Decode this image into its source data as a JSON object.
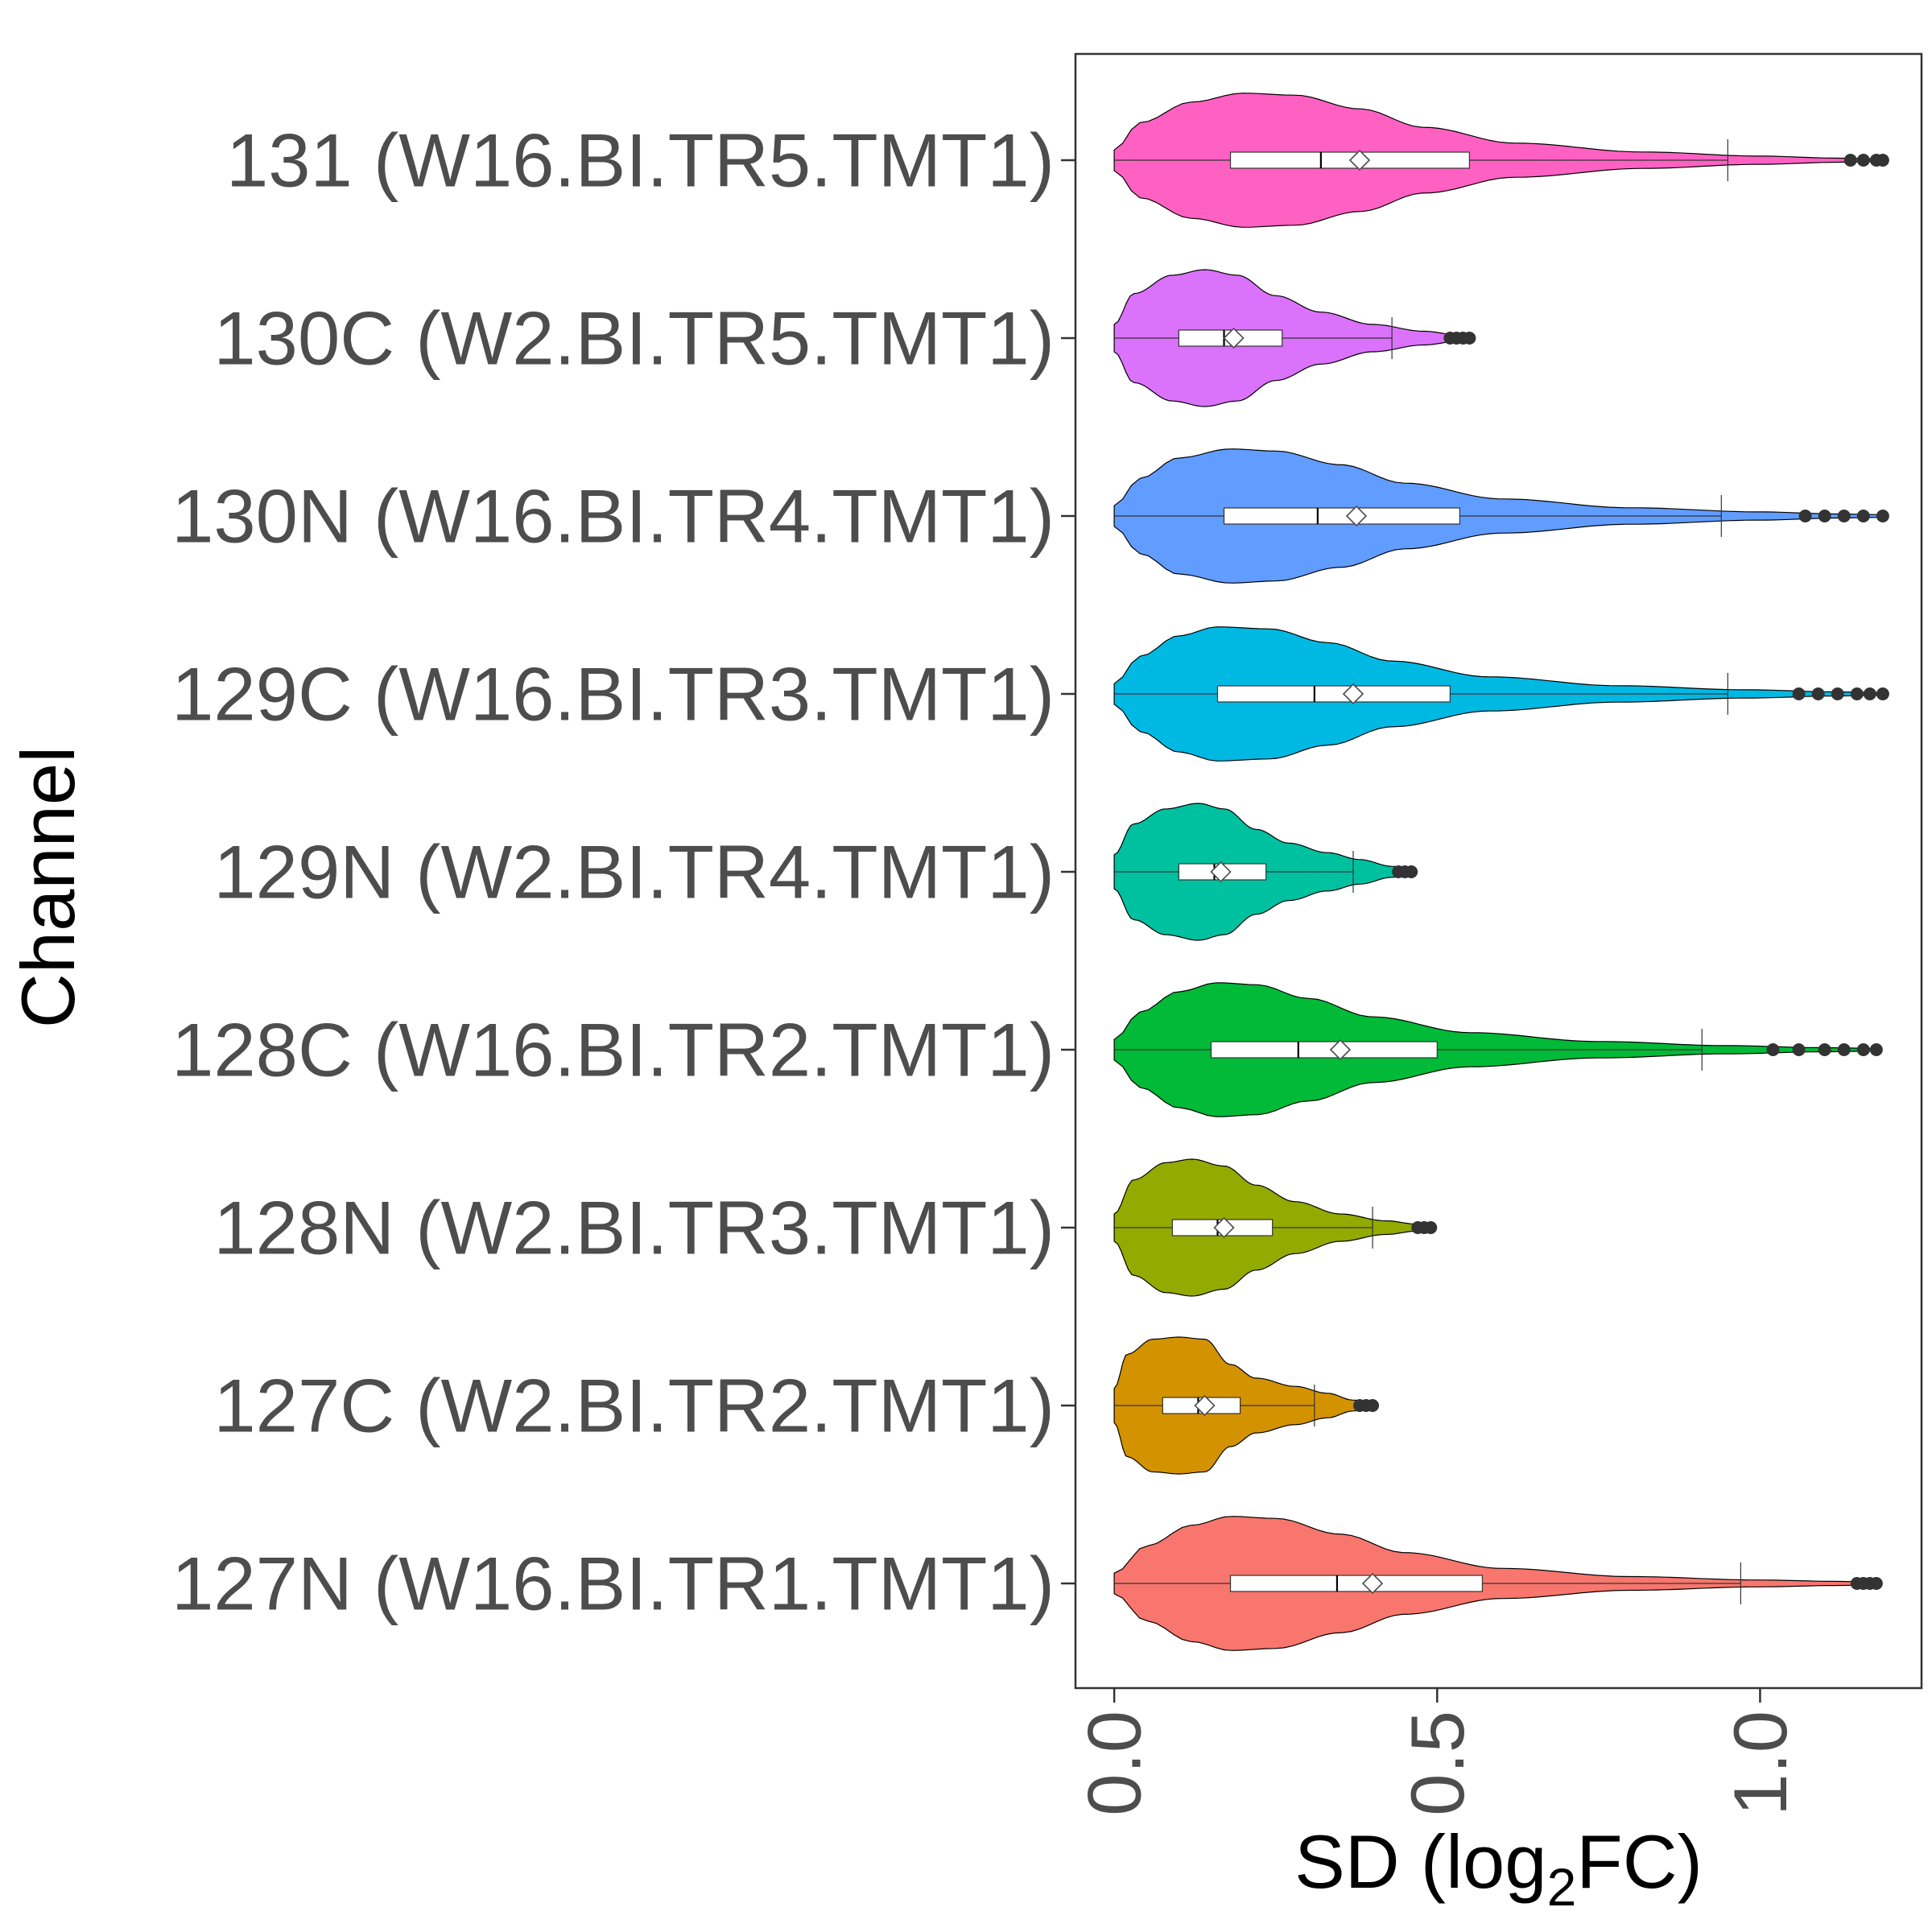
{
  "chart_data": {
    "type": "violin",
    "orientation": "horizontal",
    "title": "",
    "xlabel": "SD (log2FC)",
    "xlabel_parts": {
      "main": "SD (log",
      "sub": "2",
      "tail": "FC)"
    },
    "ylabel": "Channel",
    "xlim": [
      -0.06,
      1.25
    ],
    "xticks": [
      0.0,
      0.5,
      1.0
    ],
    "xtick_labels": [
      "0.0",
      "0.5",
      "1.0"
    ],
    "grid": false,
    "legend": "none",
    "categories": [
      "127N (W16.BI.TR1.TMT1)",
      "127C (W2.BI.TR2.TMT1)",
      "128N (W2.BI.TR3.TMT1)",
      "128C (W16.BI.TR2.TMT1)",
      "129N (W2.BI.TR4.TMT1)",
      "129C (W16.BI.TR3.TMT1)",
      "130N (W16.BI.TR4.TMT1)",
      "130C (W2.BI.TR5.TMT1)",
      "131 (W16.BI.TR5.TMT1)"
    ],
    "series": [
      {
        "name": "127N (W16.BI.TR1.TMT1)",
        "color": "#F8766D",
        "min": 0.0,
        "q1": 0.18,
        "median": 0.345,
        "mean": 0.4,
        "q3": 0.57,
        "upper_whisker": 0.97,
        "max": 1.18,
        "profile": [
          [
            0.0,
            0.15
          ],
          [
            0.05,
            0.55
          ],
          [
            0.12,
            0.85
          ],
          [
            0.18,
            0.98
          ],
          [
            0.25,
            0.95
          ],
          [
            0.35,
            0.72
          ],
          [
            0.45,
            0.45
          ],
          [
            0.6,
            0.22
          ],
          [
            0.8,
            0.1
          ],
          [
            1.0,
            0.05
          ],
          [
            1.12,
            0.03
          ],
          [
            1.18,
            0.02
          ]
        ],
        "outliers": [
          1.15,
          1.16,
          1.17,
          1.18
        ]
      },
      {
        "name": "127C (W2.BI.TR2.TMT1)",
        "color": "#D39200",
        "min": 0.0,
        "q1": 0.075,
        "median": 0.13,
        "mean": 0.14,
        "q3": 0.195,
        "upper_whisker": 0.31,
        "max": 0.4,
        "profile": [
          [
            0.0,
            0.25
          ],
          [
            0.02,
            0.75
          ],
          [
            0.06,
            0.97
          ],
          [
            0.1,
            1.0
          ],
          [
            0.14,
            0.97
          ],
          [
            0.18,
            0.6
          ],
          [
            0.22,
            0.4
          ],
          [
            0.28,
            0.28
          ],
          [
            0.33,
            0.18
          ],
          [
            0.37,
            0.08
          ],
          [
            0.4,
            0.03
          ]
        ],
        "outliers": [
          0.38,
          0.39,
          0.4
        ]
      },
      {
        "name": "128N (W2.BI.TR3.TMT1)",
        "color": "#93AA00",
        "min": 0.0,
        "q1": 0.09,
        "median": 0.16,
        "mean": 0.17,
        "q3": 0.245,
        "upper_whisker": 0.4,
        "max": 0.49,
        "profile": [
          [
            0.0,
            0.2
          ],
          [
            0.03,
            0.7
          ],
          [
            0.08,
            0.95
          ],
          [
            0.12,
            1.0
          ],
          [
            0.17,
            0.9
          ],
          [
            0.22,
            0.62
          ],
          [
            0.28,
            0.38
          ],
          [
            0.35,
            0.2
          ],
          [
            0.42,
            0.1
          ],
          [
            0.47,
            0.05
          ],
          [
            0.49,
            0.02
          ]
        ],
        "outliers": [
          0.47,
          0.48,
          0.49
        ]
      },
      {
        "name": "128C (W16.BI.TR2.TMT1)",
        "color": "#00BA38",
        "min": 0.0,
        "q1": 0.15,
        "median": 0.285,
        "mean": 0.35,
        "q3": 0.5,
        "upper_whisker": 0.91,
        "max": 1.18,
        "profile": [
          [
            0.0,
            0.15
          ],
          [
            0.04,
            0.55
          ],
          [
            0.1,
            0.85
          ],
          [
            0.16,
            0.98
          ],
          [
            0.22,
            0.95
          ],
          [
            0.3,
            0.75
          ],
          [
            0.4,
            0.48
          ],
          [
            0.55,
            0.25
          ],
          [
            0.75,
            0.12
          ],
          [
            0.95,
            0.06
          ],
          [
            1.1,
            0.03
          ],
          [
            1.18,
            0.02
          ]
        ],
        "outliers": [
          1.02,
          1.06,
          1.1,
          1.13,
          1.16,
          1.18
        ]
      },
      {
        "name": "129N (W2.BI.TR4.TMT1)",
        "color": "#00C19F",
        "min": 0.0,
        "q1": 0.1,
        "median": 0.155,
        "mean": 0.165,
        "q3": 0.235,
        "upper_whisker": 0.37,
        "max": 0.46,
        "profile": [
          [
            0.0,
            0.25
          ],
          [
            0.03,
            0.7
          ],
          [
            0.08,
            0.92
          ],
          [
            0.13,
            1.0
          ],
          [
            0.17,
            0.92
          ],
          [
            0.22,
            0.62
          ],
          [
            0.27,
            0.42
          ],
          [
            0.33,
            0.28
          ],
          [
            0.38,
            0.18
          ],
          [
            0.43,
            0.08
          ],
          [
            0.46,
            0.03
          ]
        ],
        "outliers": [
          0.44,
          0.45,
          0.46
        ]
      },
      {
        "name": "129C (W16.BI.TR3.TMT1)",
        "color": "#00B9E3",
        "min": 0.0,
        "q1": 0.16,
        "median": 0.31,
        "mean": 0.37,
        "q3": 0.52,
        "upper_whisker": 0.95,
        "max": 1.19,
        "profile": [
          [
            0.0,
            0.15
          ],
          [
            0.04,
            0.55
          ],
          [
            0.1,
            0.85
          ],
          [
            0.16,
            0.98
          ],
          [
            0.24,
            0.95
          ],
          [
            0.33,
            0.75
          ],
          [
            0.43,
            0.48
          ],
          [
            0.58,
            0.25
          ],
          [
            0.78,
            0.12
          ],
          [
            0.98,
            0.06
          ],
          [
            1.12,
            0.03
          ],
          [
            1.19,
            0.02
          ]
        ],
        "outliers": [
          1.06,
          1.09,
          1.12,
          1.15,
          1.17,
          1.19
        ]
      },
      {
        "name": "130N (W16.BI.TR4.TMT1)",
        "color": "#619CFF",
        "min": 0.0,
        "q1": 0.17,
        "median": 0.315,
        "mean": 0.375,
        "q3": 0.535,
        "upper_whisker": 0.94,
        "max": 1.19,
        "profile": [
          [
            0.0,
            0.15
          ],
          [
            0.04,
            0.55
          ],
          [
            0.1,
            0.85
          ],
          [
            0.18,
            0.98
          ],
          [
            0.25,
            0.95
          ],
          [
            0.35,
            0.75
          ],
          [
            0.45,
            0.48
          ],
          [
            0.6,
            0.25
          ],
          [
            0.8,
            0.12
          ],
          [
            1.0,
            0.06
          ],
          [
            1.12,
            0.03
          ],
          [
            1.19,
            0.02
          ]
        ],
        "outliers": [
          1.07,
          1.1,
          1.13,
          1.16,
          1.19
        ]
      },
      {
        "name": "130C (W2.BI.TR5.TMT1)",
        "color": "#DB72FB",
        "min": 0.0,
        "q1": 0.1,
        "median": 0.17,
        "mean": 0.185,
        "q3": 0.26,
        "upper_whisker": 0.43,
        "max": 0.55,
        "profile": [
          [
            0.0,
            0.2
          ],
          [
            0.03,
            0.65
          ],
          [
            0.09,
            0.92
          ],
          [
            0.14,
            1.0
          ],
          [
            0.19,
            0.92
          ],
          [
            0.25,
            0.62
          ],
          [
            0.32,
            0.38
          ],
          [
            0.4,
            0.2
          ],
          [
            0.48,
            0.1
          ],
          [
            0.53,
            0.05
          ],
          [
            0.55,
            0.02
          ]
        ],
        "outliers": [
          0.52,
          0.53,
          0.54,
          0.55
        ]
      },
      {
        "name": "131 (W16.BI.TR5.TMT1)",
        "color": "#FF61C3",
        "min": 0.0,
        "q1": 0.18,
        "median": 0.32,
        "mean": 0.38,
        "q3": 0.55,
        "upper_whisker": 0.95,
        "max": 1.19,
        "profile": [
          [
            0.0,
            0.15
          ],
          [
            0.04,
            0.55
          ],
          [
            0.12,
            0.85
          ],
          [
            0.2,
            0.98
          ],
          [
            0.28,
            0.95
          ],
          [
            0.38,
            0.75
          ],
          [
            0.48,
            0.48
          ],
          [
            0.62,
            0.25
          ],
          [
            0.82,
            0.12
          ],
          [
            1.0,
            0.06
          ],
          [
            1.12,
            0.03
          ],
          [
            1.19,
            0.02
          ]
        ],
        "outliers": [
          1.14,
          1.16,
          1.18,
          1.19
        ]
      }
    ]
  }
}
